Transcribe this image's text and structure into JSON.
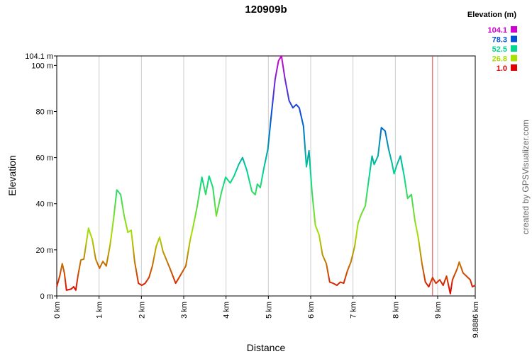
{
  "chart_data": {
    "type": "line",
    "title": "120909b",
    "xlabel": "Distance",
    "ylabel": "Elevation",
    "credit": "created by GPSVisualizer.com",
    "x": [
      0,
      0.07,
      0.13,
      0.18,
      0.23,
      0.34,
      0.4,
      0.45,
      0.5,
      0.57,
      0.64,
      0.69,
      0.75,
      0.84,
      0.92,
      1.01,
      1.09,
      1.17,
      1.26,
      1.34,
      1.42,
      1.51,
      1.59,
      1.68,
      1.76,
      1.84,
      1.93,
      2.01,
      2.09,
      2.18,
      2.26,
      2.35,
      2.43,
      2.51,
      2.68,
      2.81,
      2.93,
      3.05,
      3.15,
      3.23,
      3.32,
      3.43,
      3.52,
      3.6,
      3.69,
      3.77,
      3.89,
      3.99,
      4.1,
      4.19,
      4.3,
      4.39,
      4.49,
      4.61,
      4.69,
      4.74,
      4.81,
      4.89,
      4.99,
      5.06,
      5.16,
      5.24,
      5.31,
      5.39,
      5.49,
      5.58,
      5.66,
      5.73,
      5.83,
      5.9,
      5.96,
      6.03,
      6.11,
      6.2,
      6.28,
      6.37,
      6.45,
      6.53,
      6.62,
      6.7,
      6.78,
      6.87,
      6.95,
      7.04,
      7.12,
      7.2,
      7.29,
      7.37,
      7.45,
      7.5,
      7.59,
      7.67,
      7.76,
      7.84,
      7.92,
      7.97,
      8.04,
      8.12,
      8.21,
      8.29,
      8.38,
      8.46,
      8.54,
      8.63,
      8.71,
      8.79,
      8.88,
      8.96,
      9.05,
      9.13,
      9.21,
      9.3,
      9.35,
      9.46,
      9.51,
      9.6,
      9.68,
      9.77,
      9.82,
      9.8886
    ],
    "series": [
      {
        "name": "Elevation (m)",
        "values": [
          4,
          8.6,
          14,
          10,
          2.5,
          3,
          4,
          2.5,
          8.6,
          15.6,
          16,
          22,
          29.4,
          24.5,
          16,
          12,
          15,
          13,
          22,
          33,
          46,
          44,
          35,
          27.6,
          28.5,
          15,
          5.5,
          4.6,
          5.5,
          8,
          13,
          21.5,
          25.5,
          19.3,
          11.7,
          5.5,
          9.2,
          13,
          24,
          30.7,
          39,
          51.5,
          44,
          52,
          47,
          34.7,
          44.8,
          51.5,
          49,
          52,
          57,
          60,
          54.6,
          45.4,
          43.9,
          48.5,
          47,
          55,
          63.8,
          76.7,
          94,
          102,
          104.1,
          94.5,
          84.7,
          81.6,
          83,
          81.6,
          73.6,
          56,
          63,
          45.4,
          30.7,
          26.4,
          17.8,
          14,
          6,
          5.5,
          4.6,
          6,
          5.5,
          11,
          14.7,
          21.5,
          31.6,
          35.6,
          39,
          50,
          60.7,
          57,
          60.7,
          73,
          71.5,
          63.8,
          57.7,
          53,
          57,
          60.7,
          52,
          42.3,
          44,
          33,
          25.5,
          14,
          6,
          4,
          8,
          5.5,
          7,
          4.6,
          8.6,
          1,
          7,
          11.7,
          14.7,
          10,
          8.6,
          7,
          4,
          4.6
        ]
      }
    ],
    "xlim": [
      0,
      9.8886
    ],
    "xticks": [
      {
        "value": 0,
        "label": "0 km"
      },
      {
        "value": 1,
        "label": "1 km"
      },
      {
        "value": 2,
        "label": "2 km"
      },
      {
        "value": 3,
        "label": "3 km"
      },
      {
        "value": 4,
        "label": "4 km"
      },
      {
        "value": 5,
        "label": "5 km"
      },
      {
        "value": 6,
        "label": "6 km"
      },
      {
        "value": 7,
        "label": "7 km"
      },
      {
        "value": 8,
        "label": "8 km"
      },
      {
        "value": 9,
        "label": "9 km"
      },
      {
        "value": 9.8886,
        "label": "9.8886 km"
      }
    ],
    "ylim": [
      0,
      104.1
    ],
    "yticks": [
      {
        "value": 0,
        "label": "0 m"
      },
      {
        "value": 20,
        "label": "20 m"
      },
      {
        "value": 40,
        "label": "40 m"
      },
      {
        "value": 60,
        "label": "60 m"
      },
      {
        "value": 80,
        "label": "80 m"
      },
      {
        "value": 100,
        "label": "100 m"
      },
      {
        "value": 104.1,
        "label": "104.1 m"
      }
    ],
    "grid": true,
    "marker": {
      "x": 8.88,
      "color": "#e04040"
    },
    "legend": {
      "title": "Elevation (m)",
      "entries": [
        {
          "value": 104.1,
          "label": "104.1",
          "color": "#d000d0"
        },
        {
          "value": 78.3,
          "label": "78.3",
          "color": "#0050d8"
        },
        {
          "value": 52.5,
          "label": "52.5",
          "color": "#00d890"
        },
        {
          "value": 26.8,
          "label": "26.8",
          "color": "#a8e000"
        },
        {
          "value": 1,
          "label": "1.0",
          "color": "#e00000"
        }
      ]
    }
  }
}
